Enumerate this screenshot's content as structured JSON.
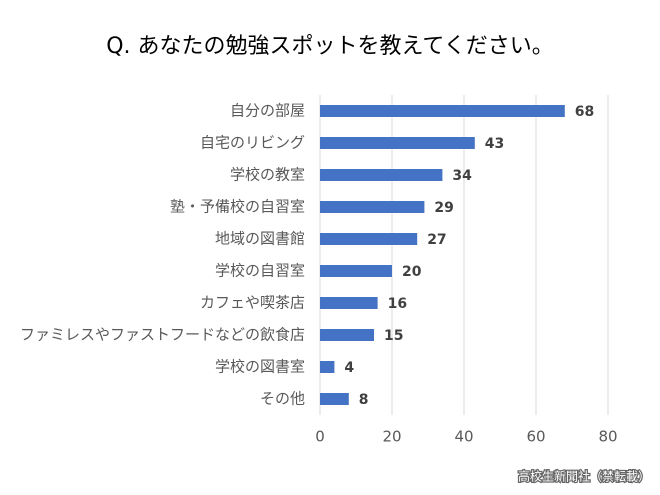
{
  "chart_data": {
    "type": "barh",
    "title": "Q. あなたの勉強スポットを教えてください。",
    "categories": [
      "自分の部屋",
      "自宅のリビング",
      "学校の教室",
      "塾・予備校の自習室",
      "地域の図書館",
      "学校の自習室",
      "カフェや喫茶店",
      "ファミレスやファストフードなどの飲食店",
      "学校の図書室",
      "その他"
    ],
    "values": [
      68,
      43,
      34,
      29,
      27,
      20,
      16,
      15,
      4,
      8
    ],
    "color": "#4472c4",
    "xlim": [
      0,
      80
    ],
    "xticks": [
      0,
      20,
      40,
      60,
      80
    ],
    "grid": true,
    "source": "高校生新聞社（禁転載）"
  }
}
